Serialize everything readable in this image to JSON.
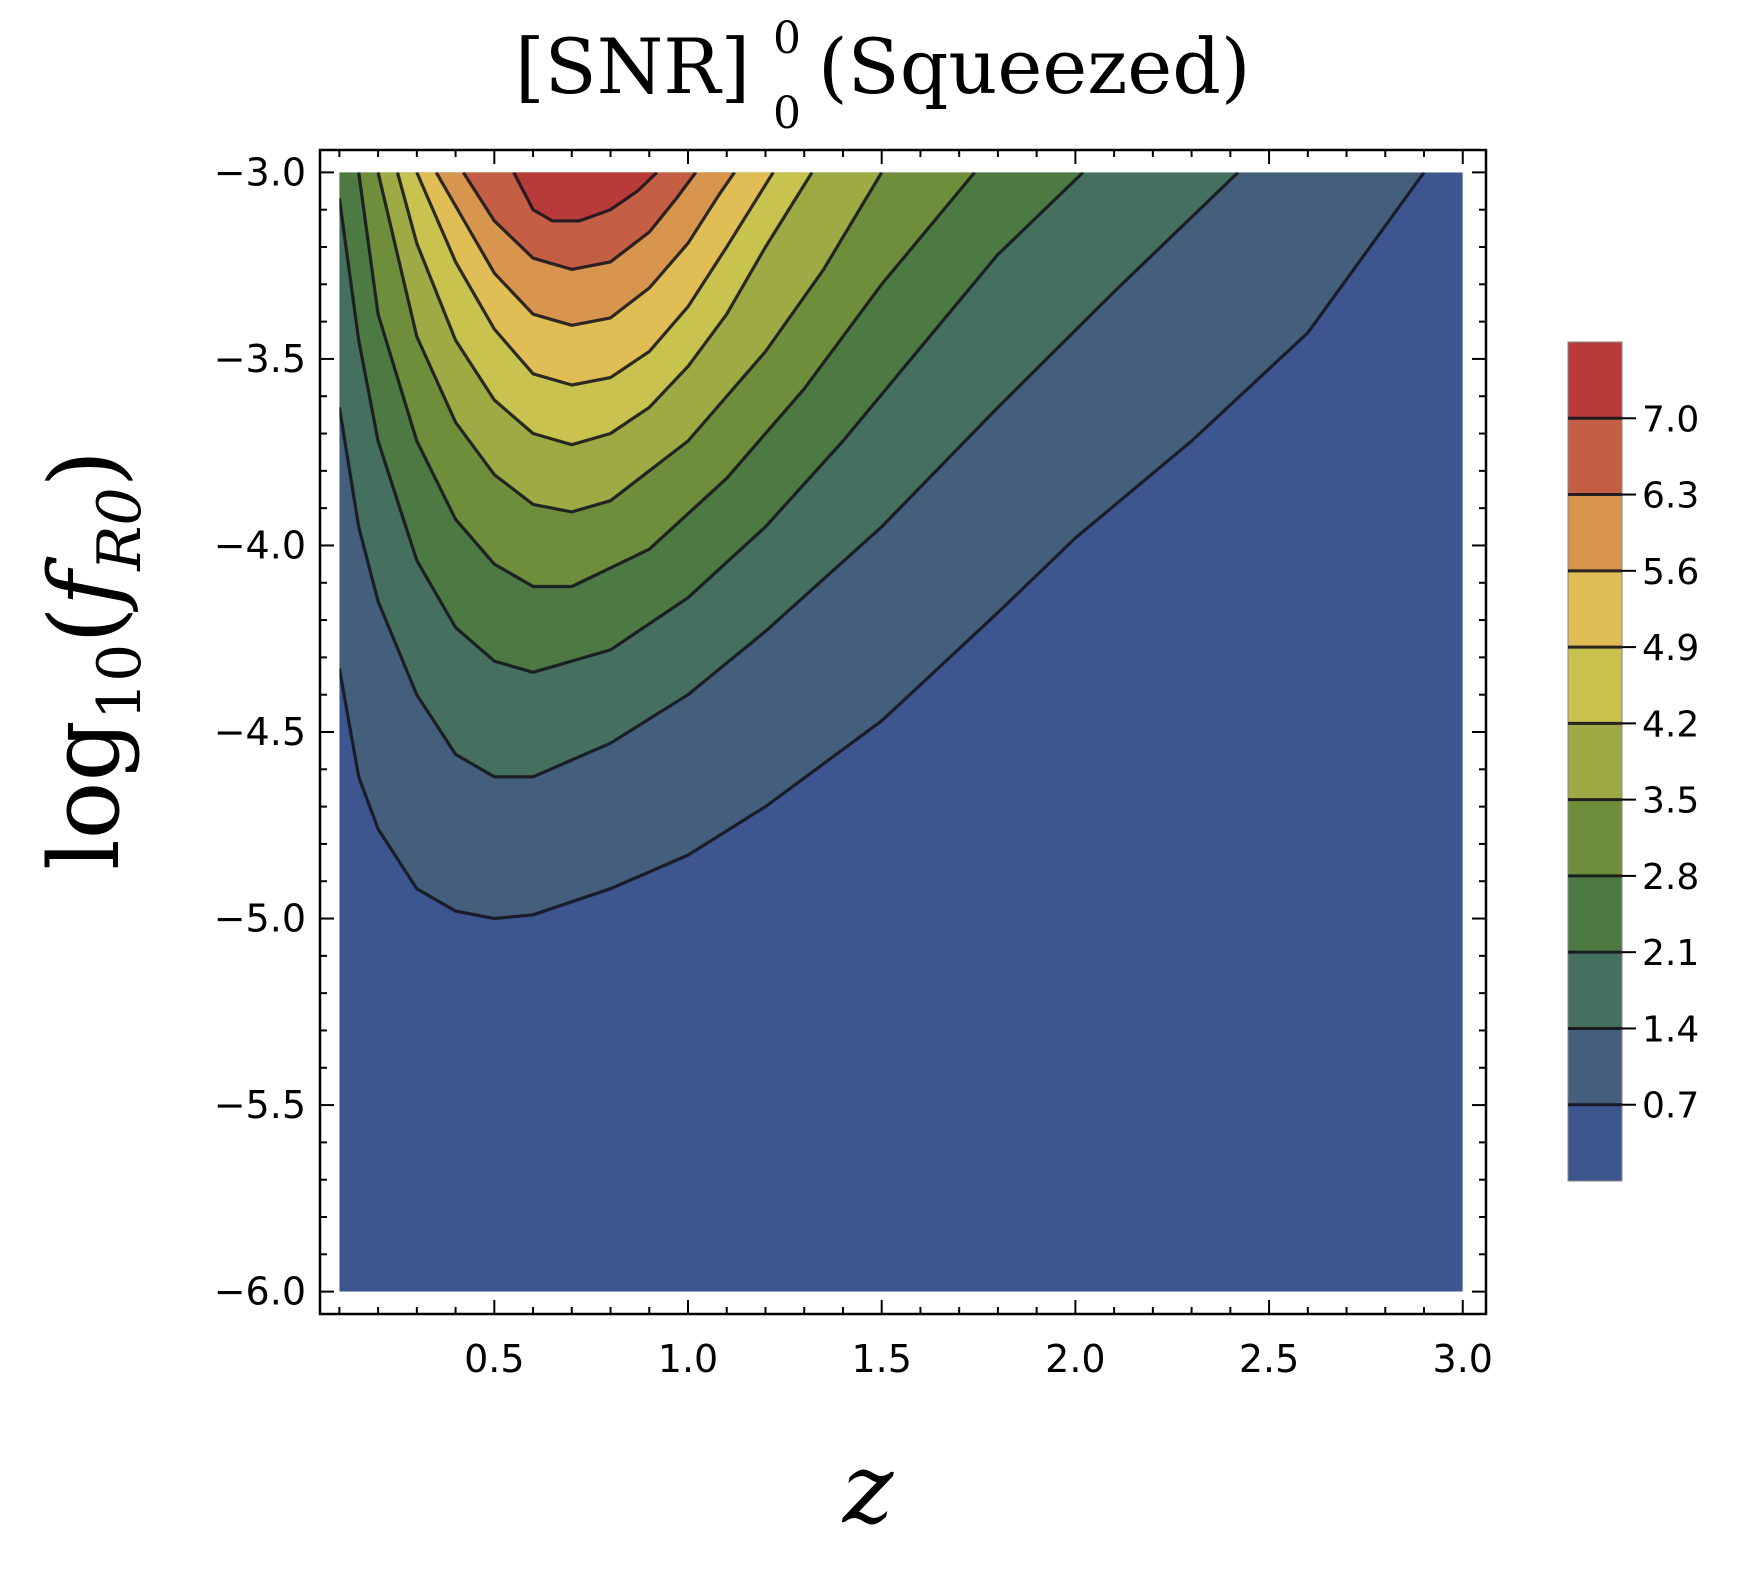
{
  "chart_data": {
    "type": "contour",
    "title": {
      "base": "[SNR]",
      "superscript": "0",
      "subscript": "0",
      "suffix": "(Squeezed)"
    },
    "xlabel": "z",
    "ylabel": {
      "func": "log",
      "func_subscript": "10",
      "open": "(",
      "var": "f",
      "var_subscript": "R0",
      "close": ")"
    },
    "xlim": [
      0.05,
      3.06
    ],
    "ylim": [
      -6.06,
      -2.94
    ],
    "data_x_range": [
      0.1,
      3.0
    ],
    "data_y_range": [
      -6.0,
      -3.0
    ],
    "x_ticks": [
      0.5,
      1.0,
      1.5,
      2.0,
      2.5,
      3.0
    ],
    "x_tick_labels": [
      "0.5",
      "1.0",
      "1.5",
      "2.0",
      "2.5",
      "3.0"
    ],
    "y_ticks": [
      -3.0,
      -3.5,
      -4.0,
      -4.5,
      -5.0,
      -5.5,
      -6.0
    ],
    "y_tick_labels": [
      "−3.0",
      "−3.5",
      "−4.0",
      "−4.5",
      "−5.0",
      "−5.5",
      "−6.0"
    ],
    "levels": [
      0.7,
      1.4,
      2.1,
      2.8,
      3.5,
      4.2,
      4.9,
      5.6,
      6.3,
      7.0
    ],
    "colorbar_range": [
      0,
      7.7
    ],
    "colorbar_tick_labels": [
      "7.0",
      "6.3",
      "5.6",
      "4.9",
      "4.2",
      "3.5",
      "2.8",
      "2.1",
      "1.4",
      "0.7"
    ],
    "band_colors": [
      "#3d5690",
      "#435f7c",
      "#456f5f",
      "#4d7a42",
      "#6e8e3c",
      "#9eab44",
      "#c8c24f",
      "#e0bd55",
      "#d8954e",
      "#c45e45",
      "#b83b3a"
    ],
    "contours": [
      {
        "level": 0.7,
        "points": [
          [
            0.1,
            -4.33
          ],
          [
            0.15,
            -4.62
          ],
          [
            0.2,
            -4.76
          ],
          [
            0.3,
            -4.92
          ],
          [
            0.4,
            -4.98
          ],
          [
            0.5,
            -5.0
          ],
          [
            0.6,
            -4.99
          ],
          [
            0.8,
            -4.92
          ],
          [
            1.0,
            -4.83
          ],
          [
            1.2,
            -4.7
          ],
          [
            1.5,
            -4.47
          ],
          [
            1.8,
            -4.18
          ],
          [
            2.0,
            -3.98
          ],
          [
            2.3,
            -3.72
          ],
          [
            2.6,
            -3.43
          ],
          [
            2.9,
            -3.0
          ]
        ]
      },
      {
        "level": 1.4,
        "points": [
          [
            0.1,
            -3.63
          ],
          [
            0.15,
            -3.95
          ],
          [
            0.2,
            -4.15
          ],
          [
            0.3,
            -4.4
          ],
          [
            0.4,
            -4.56
          ],
          [
            0.5,
            -4.62
          ],
          [
            0.6,
            -4.62
          ],
          [
            0.8,
            -4.53
          ],
          [
            1.0,
            -4.4
          ],
          [
            1.2,
            -4.23
          ],
          [
            1.5,
            -3.95
          ],
          [
            1.8,
            -3.63
          ],
          [
            2.1,
            -3.32
          ],
          [
            2.42,
            -3.0
          ]
        ]
      },
      {
        "level": 2.1,
        "points": [
          [
            0.1,
            -3.07
          ],
          [
            0.15,
            -3.45
          ],
          [
            0.2,
            -3.72
          ],
          [
            0.3,
            -4.04
          ],
          [
            0.4,
            -4.22
          ],
          [
            0.5,
            -4.31
          ],
          [
            0.6,
            -4.34
          ],
          [
            0.8,
            -4.28
          ],
          [
            1.0,
            -4.14
          ],
          [
            1.2,
            -3.95
          ],
          [
            1.4,
            -3.72
          ],
          [
            1.6,
            -3.47
          ],
          [
            1.8,
            -3.22
          ],
          [
            2.02,
            -3.0
          ]
        ]
      },
      {
        "level": 2.8,
        "points": [
          [
            0.15,
            -3.0
          ],
          [
            0.2,
            -3.38
          ],
          [
            0.3,
            -3.72
          ],
          [
            0.4,
            -3.93
          ],
          [
            0.5,
            -4.05
          ],
          [
            0.6,
            -4.11
          ],
          [
            0.7,
            -4.11
          ],
          [
            0.9,
            -4.01
          ],
          [
            1.1,
            -3.82
          ],
          [
            1.3,
            -3.58
          ],
          [
            1.5,
            -3.3
          ],
          [
            1.7,
            -3.05
          ],
          [
            1.74,
            -3.0
          ]
        ]
      },
      {
        "level": 3.5,
        "points": [
          [
            0.2,
            -3.0
          ],
          [
            0.3,
            -3.44
          ],
          [
            0.4,
            -3.67
          ],
          [
            0.5,
            -3.81
          ],
          [
            0.6,
            -3.89
          ],
          [
            0.7,
            -3.91
          ],
          [
            0.8,
            -3.88
          ],
          [
            1.0,
            -3.72
          ],
          [
            1.2,
            -3.48
          ],
          [
            1.35,
            -3.26
          ],
          [
            1.5,
            -3.0
          ]
        ]
      },
      {
        "level": 4.2,
        "points": [
          [
            0.25,
            -3.0
          ],
          [
            0.3,
            -3.19
          ],
          [
            0.4,
            -3.45
          ],
          [
            0.5,
            -3.61
          ],
          [
            0.6,
            -3.7
          ],
          [
            0.7,
            -3.73
          ],
          [
            0.8,
            -3.7
          ],
          [
            0.9,
            -3.63
          ],
          [
            1.0,
            -3.52
          ],
          [
            1.1,
            -3.38
          ],
          [
            1.2,
            -3.2
          ],
          [
            1.32,
            -3.0
          ]
        ]
      },
      {
        "level": 4.9,
        "points": [
          [
            0.3,
            -3.0
          ],
          [
            0.4,
            -3.24
          ],
          [
            0.5,
            -3.42
          ],
          [
            0.6,
            -3.54
          ],
          [
            0.7,
            -3.57
          ],
          [
            0.8,
            -3.55
          ],
          [
            0.9,
            -3.48
          ],
          [
            1.0,
            -3.36
          ],
          [
            1.1,
            -3.2
          ],
          [
            1.22,
            -3.0
          ]
        ]
      },
      {
        "level": 5.6,
        "points": [
          [
            0.35,
            -3.0
          ],
          [
            0.4,
            -3.09
          ],
          [
            0.5,
            -3.27
          ],
          [
            0.6,
            -3.38
          ],
          [
            0.7,
            -3.41
          ],
          [
            0.8,
            -3.39
          ],
          [
            0.9,
            -3.31
          ],
          [
            1.0,
            -3.19
          ],
          [
            1.08,
            -3.06
          ],
          [
            1.12,
            -3.0
          ]
        ]
      },
      {
        "level": 6.3,
        "points": [
          [
            0.42,
            -3.0
          ],
          [
            0.5,
            -3.13
          ],
          [
            0.6,
            -3.23
          ],
          [
            0.7,
            -3.26
          ],
          [
            0.8,
            -3.24
          ],
          [
            0.9,
            -3.16
          ],
          [
            0.97,
            -3.07
          ],
          [
            1.02,
            -3.0
          ]
        ]
      },
      {
        "level": 7.0,
        "points": [
          [
            0.55,
            -3.0
          ],
          [
            0.6,
            -3.1
          ],
          [
            0.65,
            -3.13
          ],
          [
            0.72,
            -3.13
          ],
          [
            0.8,
            -3.1
          ],
          [
            0.87,
            -3.05
          ],
          [
            0.92,
            -3.0
          ]
        ]
      }
    ]
  }
}
